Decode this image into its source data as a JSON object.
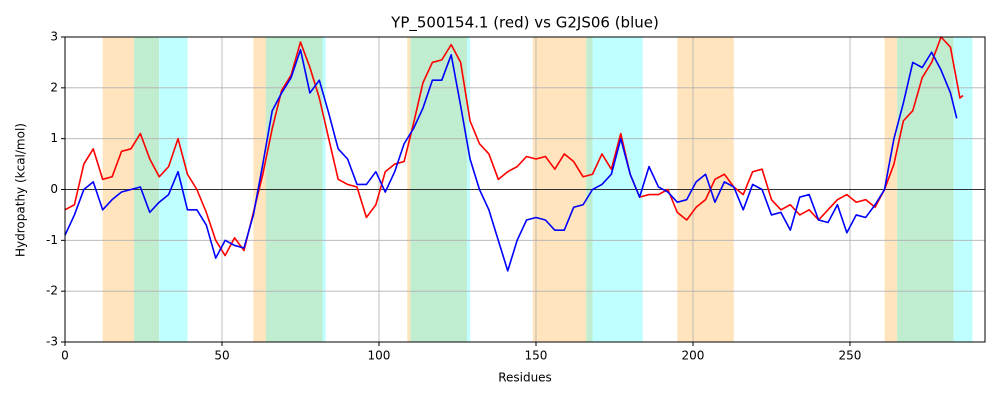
{
  "chart_data": {
    "type": "line",
    "title": "YP_500154.1 (red) vs G2JS06 (blue)",
    "xlabel": "Residues",
    "ylabel": "Hydropathy (kcal/mol)",
    "xlim": [
      0,
      293
    ],
    "ylim": [
      -3,
      3
    ],
    "xticks": [
      0,
      50,
      100,
      150,
      200,
      250
    ],
    "yticks": [
      -3,
      -2,
      -1,
      0,
      1,
      2,
      3
    ],
    "grid": true,
    "zero_line": true,
    "shaded_regions": [
      {
        "start": 12,
        "end": 22,
        "color": "#ffe4bd"
      },
      {
        "start": 22,
        "end": 30,
        "color": "#c0ecd0"
      },
      {
        "start": 30,
        "end": 39,
        "color": "#c0ffff"
      },
      {
        "start": 60,
        "end": 64,
        "color": "#ffe4bd"
      },
      {
        "start": 64,
        "end": 82,
        "color": "#c0ecd0"
      },
      {
        "start": 82,
        "end": 83,
        "color": "#c0ffff"
      },
      {
        "start": 109,
        "end": 110,
        "color": "#ffe4bd"
      },
      {
        "start": 110,
        "end": 128,
        "color": "#c0ecd0"
      },
      {
        "start": 128,
        "end": 129,
        "color": "#c0ffff"
      },
      {
        "start": 149,
        "end": 166,
        "color": "#ffe4bd"
      },
      {
        "start": 166,
        "end": 168,
        "color": "#c0ecd0"
      },
      {
        "start": 168,
        "end": 184,
        "color": "#c0ffff"
      },
      {
        "start": 195,
        "end": 213,
        "color": "#ffe4bd"
      },
      {
        "start": 261,
        "end": 265,
        "color": "#ffe4bd"
      },
      {
        "start": 265,
        "end": 283,
        "color": "#c0ecd0"
      },
      {
        "start": 283,
        "end": 289,
        "color": "#c0ffff"
      }
    ],
    "series": [
      {
        "name": "YP_500154.1",
        "color": "#ff0000",
        "x": [
          0,
          3,
          6,
          9,
          12,
          15,
          18,
          21,
          24,
          27,
          30,
          33,
          36,
          39,
          42,
          45,
          48,
          51,
          54,
          57,
          60,
          63,
          66,
          69,
          72,
          75,
          78,
          81,
          84,
          87,
          90,
          93,
          96,
          99,
          102,
          105,
          108,
          111,
          114,
          117,
          120,
          123,
          126,
          129,
          132,
          135,
          138,
          141,
          144,
          147,
          150,
          153,
          156,
          159,
          162,
          165,
          168,
          171,
          174,
          177,
          180,
          183,
          186,
          189,
          192,
          195,
          198,
          201,
          204,
          207,
          210,
          213,
          216,
          219,
          222,
          225,
          228,
          231,
          234,
          237,
          240,
          243,
          246,
          249,
          252,
          255,
          258,
          261,
          264,
          267,
          270,
          273,
          276,
          279,
          282,
          285,
          286
        ],
        "values": [
          -0.4,
          -0.3,
          0.5,
          0.8,
          0.2,
          0.25,
          0.75,
          0.8,
          1.1,
          0.6,
          0.25,
          0.45,
          1.0,
          0.3,
          0.0,
          -0.45,
          -1.0,
          -1.3,
          -0.95,
          -1.2,
          -0.45,
          0.3,
          1.2,
          1.95,
          2.25,
          2.9,
          2.4,
          1.8,
          1.0,
          0.2,
          0.1,
          0.05,
          -0.55,
          -0.3,
          0.35,
          0.5,
          0.55,
          1.3,
          2.1,
          2.5,
          2.55,
          2.85,
          2.5,
          1.35,
          0.9,
          0.7,
          0.2,
          0.35,
          0.45,
          0.65,
          0.6,
          0.65,
          0.4,
          0.7,
          0.55,
          0.25,
          0.3,
          0.7,
          0.4,
          1.1,
          0.3,
          -0.15,
          -0.1,
          -0.1,
          0.0,
          -0.45,
          -0.6,
          -0.35,
          -0.2,
          0.2,
          0.3,
          0.05,
          -0.1,
          0.35,
          0.4,
          -0.2,
          -0.4,
          -0.3,
          -0.5,
          -0.4,
          -0.6,
          -0.4,
          -0.2,
          -0.1,
          -0.25,
          -0.2,
          -0.35,
          0.0,
          0.5,
          1.35,
          1.55,
          2.2,
          2.5,
          3.0,
          2.8,
          1.8,
          1.85
        ]
      },
      {
        "name": "G2JS06",
        "color": "#0000ff",
        "x": [
          0,
          3,
          6,
          9,
          12,
          15,
          18,
          21,
          24,
          27,
          30,
          33,
          36,
          39,
          42,
          45,
          48,
          51,
          54,
          57,
          60,
          63,
          66,
          69,
          72,
          75,
          78,
          81,
          84,
          87,
          90,
          93,
          96,
          99,
          102,
          105,
          108,
          111,
          114,
          117,
          120,
          123,
          126,
          129,
          132,
          135,
          138,
          141,
          144,
          147,
          150,
          153,
          156,
          159,
          162,
          165,
          168,
          171,
          174,
          177,
          180,
          183,
          186,
          189,
          192,
          195,
          198,
          201,
          204,
          207,
          210,
          213,
          216,
          219,
          222,
          225,
          228,
          231,
          234,
          237,
          240,
          243,
          246,
          249,
          252,
          255,
          258,
          261,
          264,
          267,
          270,
          273,
          276,
          279,
          282,
          284
        ],
        "values": [
          -0.9,
          -0.5,
          0.0,
          0.15,
          -0.4,
          -0.2,
          -0.05,
          0.0,
          0.05,
          -0.45,
          -0.25,
          -0.1,
          0.35,
          -0.4,
          -0.4,
          -0.7,
          -1.35,
          -1.0,
          -1.1,
          -1.15,
          -0.5,
          0.5,
          1.55,
          1.9,
          2.2,
          2.75,
          1.9,
          2.15,
          1.5,
          0.8,
          0.6,
          0.1,
          0.1,
          0.35,
          -0.05,
          0.35,
          0.9,
          1.2,
          1.6,
          2.15,
          2.15,
          2.65,
          1.65,
          0.6,
          0.0,
          -0.4,
          -1.0,
          -1.6,
          -1.0,
          -0.6,
          -0.55,
          -0.6,
          -0.8,
          -0.8,
          -0.35,
          -0.3,
          0.0,
          0.1,
          0.3,
          1.0,
          0.3,
          -0.15,
          0.45,
          0.05,
          -0.05,
          -0.25,
          -0.2,
          0.15,
          0.3,
          -0.25,
          0.15,
          0.05,
          -0.4,
          0.1,
          0.0,
          -0.5,
          -0.45,
          -0.8,
          -0.15,
          -0.1,
          -0.6,
          -0.65,
          -0.3,
          -0.85,
          -0.5,
          -0.55,
          -0.3,
          0.0,
          1.0,
          1.7,
          2.5,
          2.4,
          2.7,
          2.35,
          1.9,
          1.4
        ]
      }
    ]
  }
}
